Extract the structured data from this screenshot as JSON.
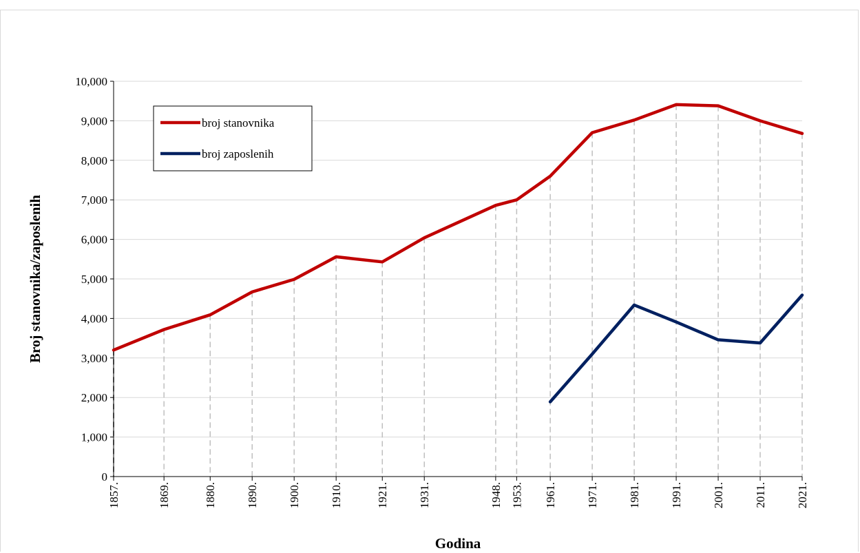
{
  "chart_data": {
    "type": "line",
    "x": [
      "1857.",
      "1869.",
      "1880.",
      "1890.",
      "1900.",
      "1910.",
      "1921.",
      "1931.",
      "1948.",
      "1953.",
      "1961.",
      "1971.",
      "1981.",
      "1991.",
      "2001.",
      "2011.",
      "2021."
    ],
    "x_years": [
      1857,
      1869,
      1880,
      1890,
      1900,
      1910,
      1921,
      1931,
      1948,
      1953,
      1961,
      1971,
      1981,
      1991,
      2001,
      2011,
      2021
    ],
    "series": [
      {
        "name": "broj stanovnika",
        "color": "#c00000",
        "values": [
          3200,
          3720,
          4090,
          4670,
          4990,
          5560,
          5430,
          6040,
          6860,
          7000,
          7600,
          8700,
          9020,
          9410,
          9380,
          9000,
          8680
        ]
      },
      {
        "name": "broj zaposlenih",
        "color": "#002060",
        "values": [
          null,
          null,
          null,
          null,
          null,
          null,
          null,
          null,
          null,
          null,
          1890,
          3100,
          4340,
          3910,
          3460,
          3380,
          4590
        ]
      }
    ],
    "xlabel": "Godina",
    "ylabel": "Broj stanovnika/zaposlenih",
    "ylim": [
      0,
      10000
    ],
    "yticks": [
      "0",
      "1,000",
      "2,000",
      "3,000",
      "4,000",
      "5,000",
      "6,000",
      "7,000",
      "8,000",
      "9,000",
      "10,000"
    ],
    "grid": "horizontal gridlines plus dashed vertical drop lines at each census year",
    "legend": "top-left"
  }
}
